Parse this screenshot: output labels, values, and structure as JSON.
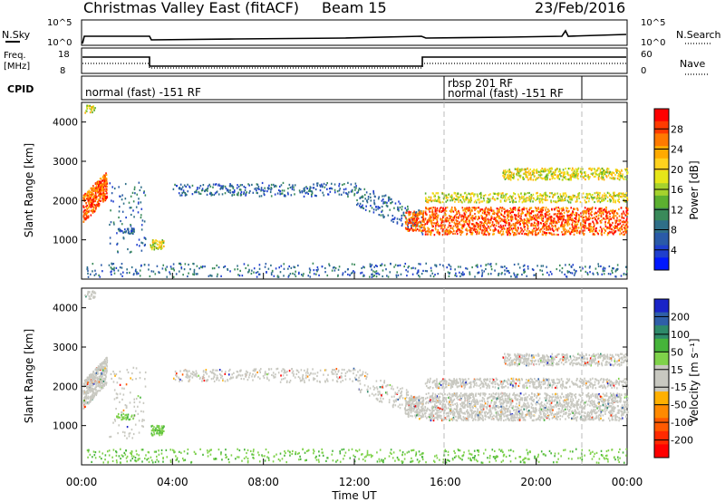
{
  "header": {
    "station": "Christmas Valley East (fitACF)",
    "beam": "Beam 15",
    "date": "23/Feb/2016"
  },
  "nsky_panel": {
    "label": "N.Sky",
    "ticks": [
      "10^5",
      "10^0"
    ],
    "right_label": "N.Search",
    "right_ticks": [
      "10^5",
      "10^0"
    ]
  },
  "freq_panel": {
    "label_line1": "Freq.",
    "label_line2": "[MHz]",
    "ticks": [
      "18",
      "8"
    ],
    "right_label": "Nave",
    "right_ticks": [
      "60",
      "0"
    ]
  },
  "cpid_panel": {
    "label": "CPID",
    "segments": [
      "normal (fast) -151 RF",
      "rbsp 201 RF",
      "normal (fast) -151 RF"
    ]
  },
  "chart_data": [
    {
      "type": "heatmap",
      "name": "power",
      "ylabel": "Slant Range [km]",
      "yticks": [
        1000,
        2000,
        3000,
        4000
      ],
      "ylim": [
        0,
        4500
      ],
      "xlabel": "Time UT",
      "xticks": [
        "00:00",
        "04:00",
        "08:00",
        "12:00",
        "16:00",
        "20:00",
        "00:00"
      ],
      "colorbar": {
        "label": "Power [dB]",
        "ticks": [
          "28",
          "24",
          "20",
          "16",
          "12",
          "8",
          "4"
        ],
        "colors": [
          "#ff0000",
          "#ff3b00",
          "#ff7a00",
          "#ffaa00",
          "#ffd21e",
          "#e6e619",
          "#a6d22d",
          "#5cb030",
          "#3a8a5a",
          "#2f6f88",
          "#2a5aa8",
          "#1f3fce",
          "#0018ff"
        ]
      },
      "grid": false
    },
    {
      "type": "heatmap",
      "name": "velocity",
      "ylabel": "Slant Range [km]",
      "yticks": [
        1000,
        2000,
        3000,
        4000
      ],
      "ylim": [
        0,
        4500
      ],
      "xlabel": "Time UT",
      "xticks": [
        "00:00",
        "04:00",
        "08:00",
        "12:00",
        "16:00",
        "20:00",
        "00:00"
      ],
      "colorbar": {
        "label": "Velocity [m s⁻¹]",
        "ticks": [
          "200",
          "100",
          "50",
          "15",
          "-15",
          "-50",
          "-100",
          "-200"
        ],
        "colors": [
          "#1a24c8",
          "#2f5fa8",
          "#2e8a6a",
          "#46b43a",
          "#7fd24a",
          "#c8c8c0",
          "#c8c8c0",
          "#ffb000",
          "#ff8a00",
          "#ff5a00",
          "#ff2a00",
          "#ff0000"
        ]
      },
      "grid": false
    }
  ]
}
